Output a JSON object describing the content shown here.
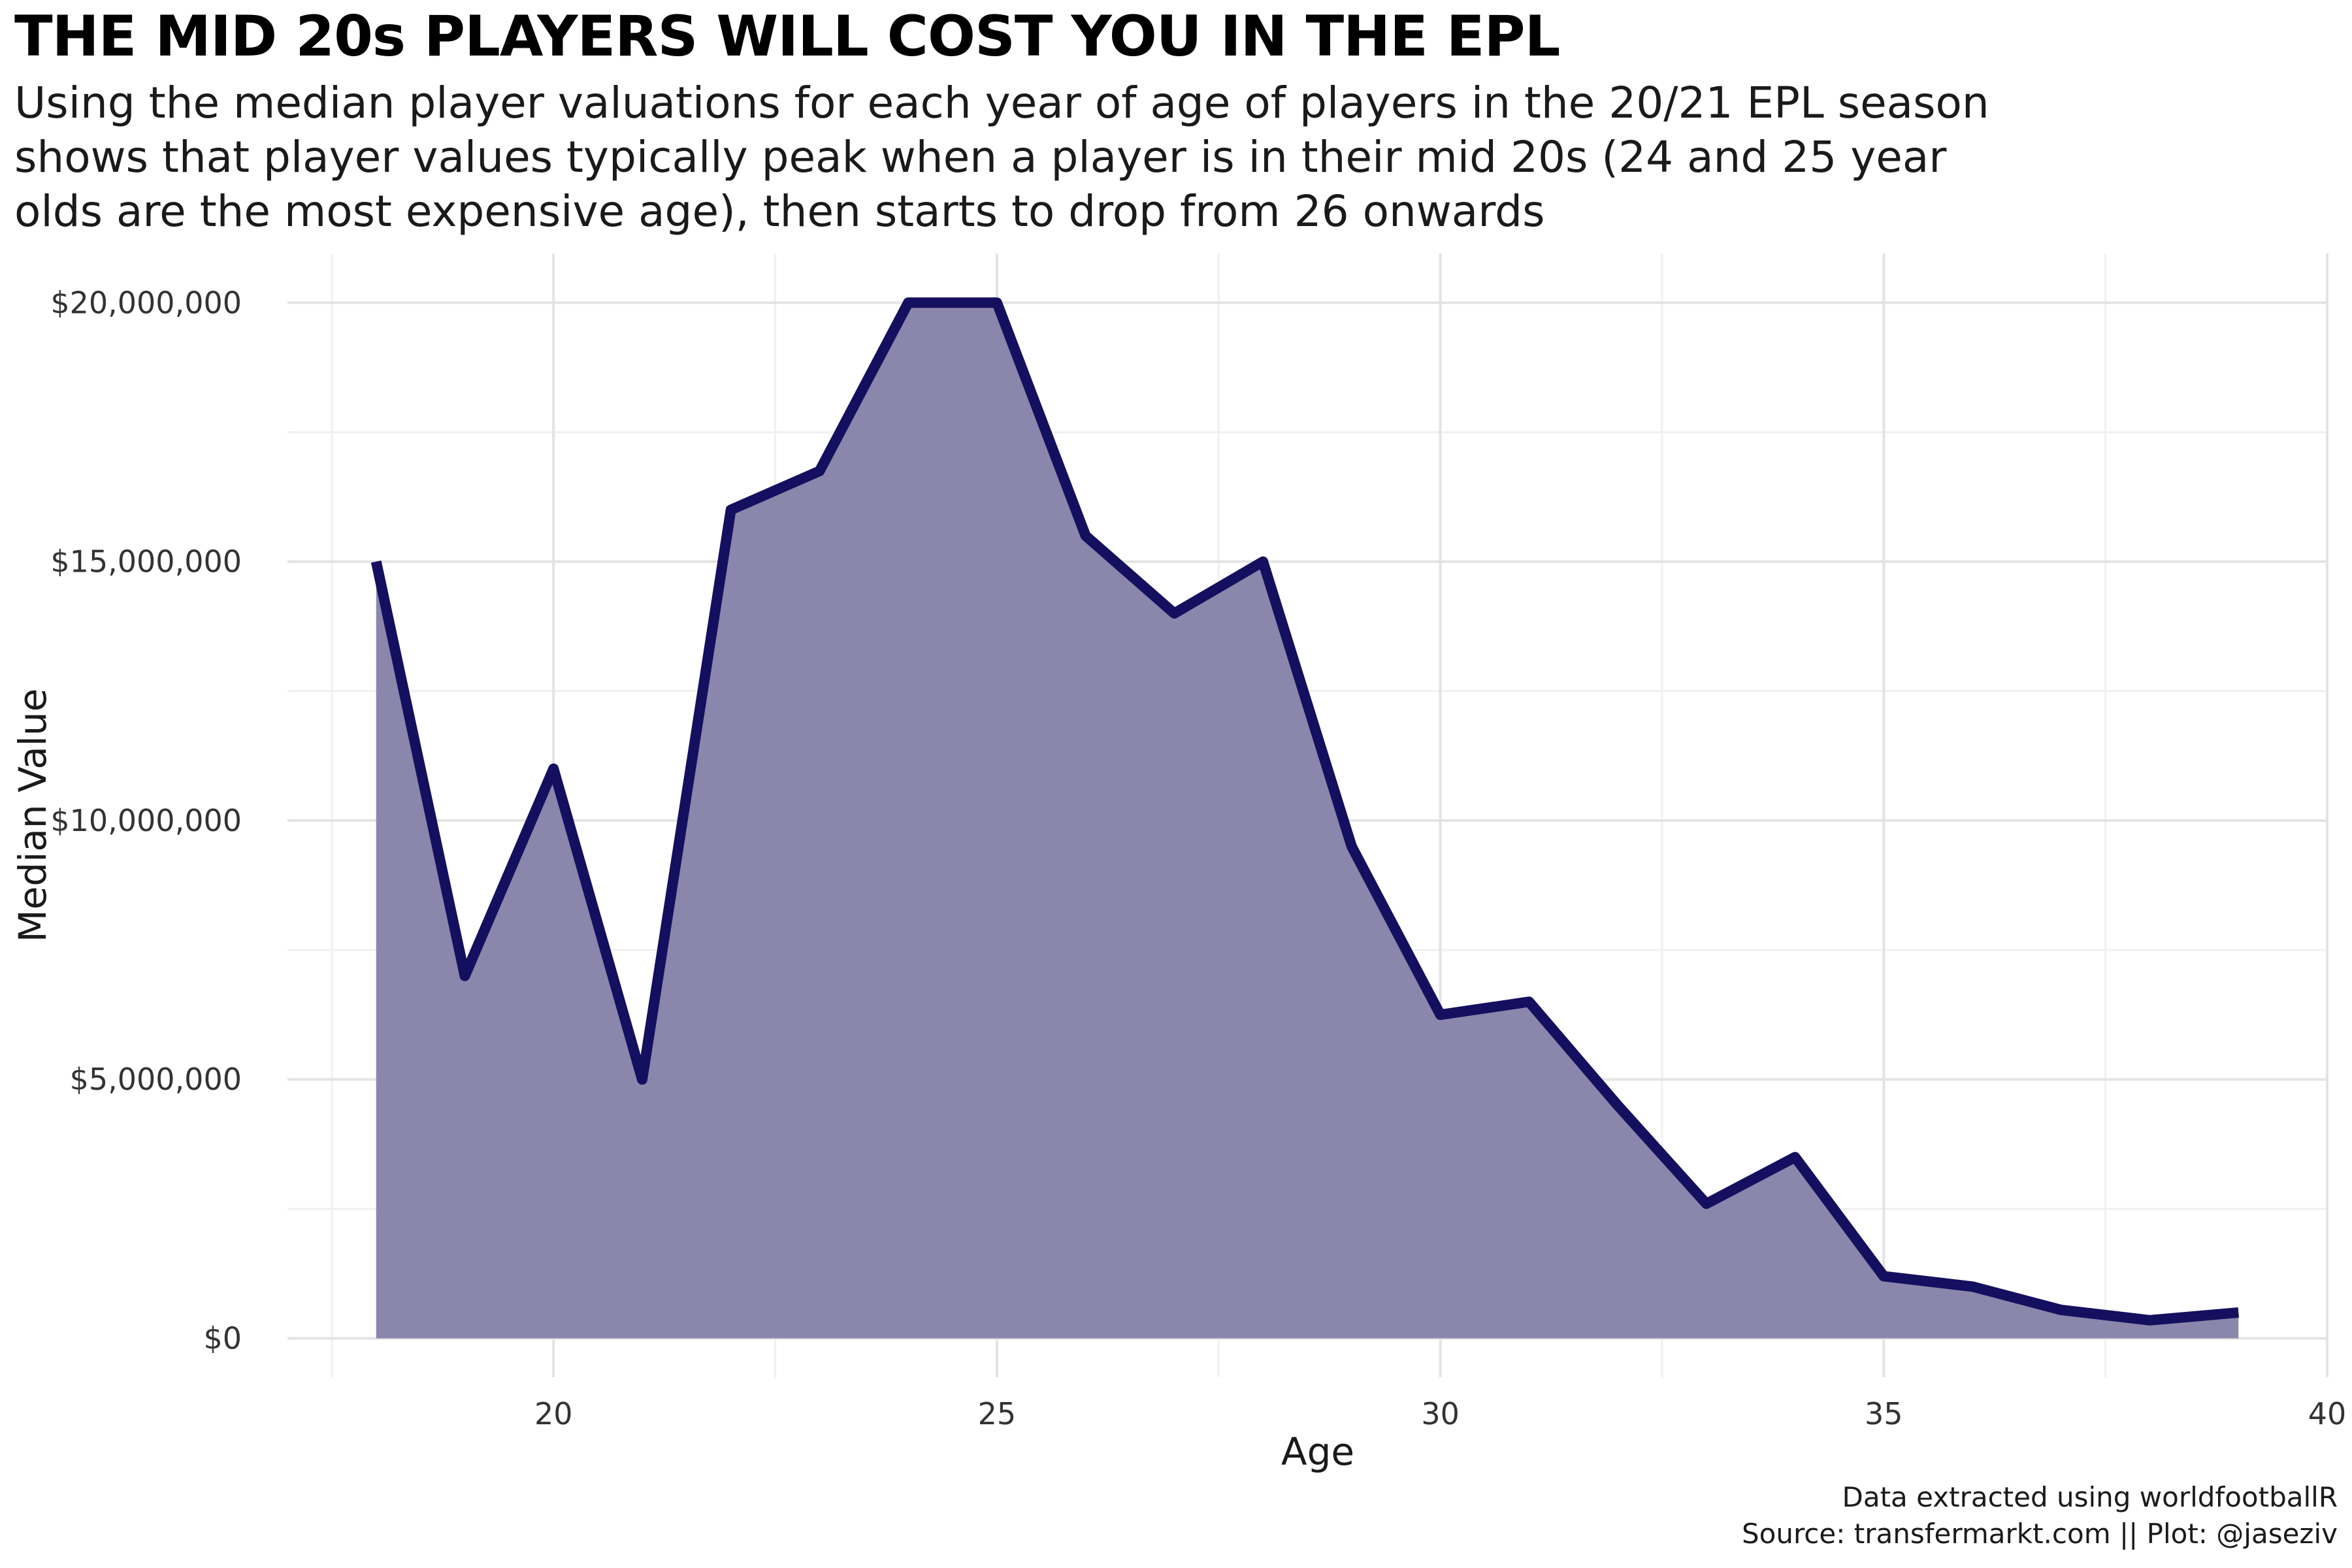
{
  "title": "THE MID 20s PLAYERS WILL COST YOU IN THE EPL",
  "subtitle_lines": [
    "Using the median player valuations for each year of age of players in the 20/21 EPL season",
    "shows that player values typically peak when a player is in their mid 20s (24 and 25 year",
    "olds are the most expensive age), then starts to drop from 26 onwards"
  ],
  "caption_lines": [
    "Data extracted using worldfootballR",
    "Source: transfermarkt.com  ||  Plot: @jaseziv"
  ],
  "chart_data": {
    "type": "area",
    "title": "THE MID 20s PLAYERS WILL COST YOU IN THE EPL",
    "xlabel": "Age",
    "ylabel": "Median Value",
    "x": [
      18,
      19,
      20,
      21,
      22,
      23,
      24,
      25,
      26,
      27,
      28,
      29,
      30,
      31,
      32,
      33,
      34,
      35,
      36,
      37,
      38,
      39
    ],
    "y": [
      15000000,
      7000000,
      11000000,
      5000000,
      16000000,
      16750000,
      20000000,
      20000000,
      15500000,
      14000000,
      15000000,
      9500000,
      6250000,
      6500000,
      4500000,
      2600000,
      3500000,
      1200000,
      1000000,
      550000,
      350000,
      500000
    ],
    "xlim": [
      17,
      40
    ],
    "ylim": [
      -750000,
      20950000
    ],
    "x_ticks": [
      20,
      25,
      30,
      35,
      40
    ],
    "x_tick_labels": [
      "20",
      "25",
      "30",
      "35",
      "40"
    ],
    "y_ticks": [
      0,
      5000000,
      10000000,
      15000000,
      20000000
    ],
    "y_tick_labels": [
      "$0",
      "$5,000,000",
      "$10,000,000",
      "$15,000,000",
      "$20,000,000"
    ],
    "grid": true,
    "legend": "none",
    "colors": {
      "line": "#140f5e",
      "fill": "#8a86ac",
      "grid_major": "#e3e3e3",
      "grid_minor": "#f0f0f0"
    }
  }
}
